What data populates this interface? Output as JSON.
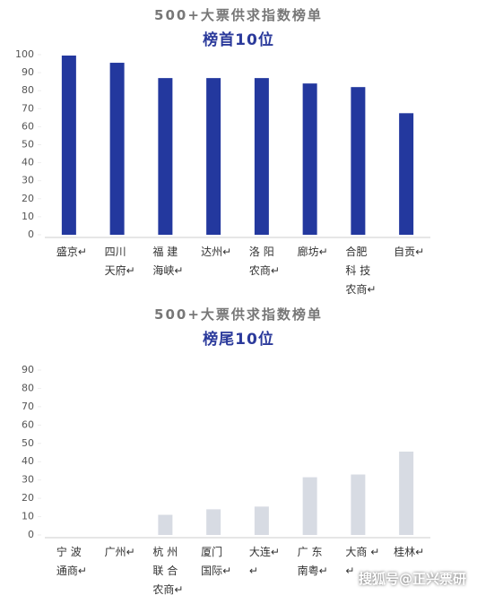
{
  "chart_data": [
    {
      "type": "bar",
      "title": "500+大票供求指数榜单",
      "subtitle": "榜首10位",
      "categories": [
        "盛京↵",
        "四川\n天府↵",
        "福 建\n海峡↵",
        "达州↵",
        "洛 阳\n农商↵",
        "廊坊↵",
        "合肥\n科 技\n农商↵",
        "自贡↵"
      ],
      "values": [
        99.5,
        95.5,
        87,
        87,
        87,
        84,
        82,
        67.5
      ],
      "color": "#23389e",
      "ylim": [
        0,
        100
      ],
      "yticks": [
        0,
        10,
        20,
        30,
        40,
        50,
        60,
        70,
        80,
        90,
        100
      ],
      "grid": false
    },
    {
      "type": "bar",
      "title": "500+大票供求指数榜单",
      "subtitle": "榜尾10位",
      "categories": [
        "宁 波\n通商↵",
        "广州↵",
        "杭 州\n联 合\n农商↵",
        "厦门\n国际↵",
        "大连↵\n↵",
        "广 东\n南粤↵",
        "大商 ↵\n↵",
        "桂林↵"
      ],
      "values": [
        0,
        0,
        11,
        14,
        15.5,
        31.5,
        33,
        45.5
      ],
      "color": "#d7dbe3",
      "ylim": [
        0,
        90
      ],
      "yticks": [
        0,
        10,
        20,
        30,
        40,
        50,
        60,
        70,
        80,
        90
      ],
      "grid": false
    }
  ],
  "watermark": "搜狐号@正兴票研"
}
